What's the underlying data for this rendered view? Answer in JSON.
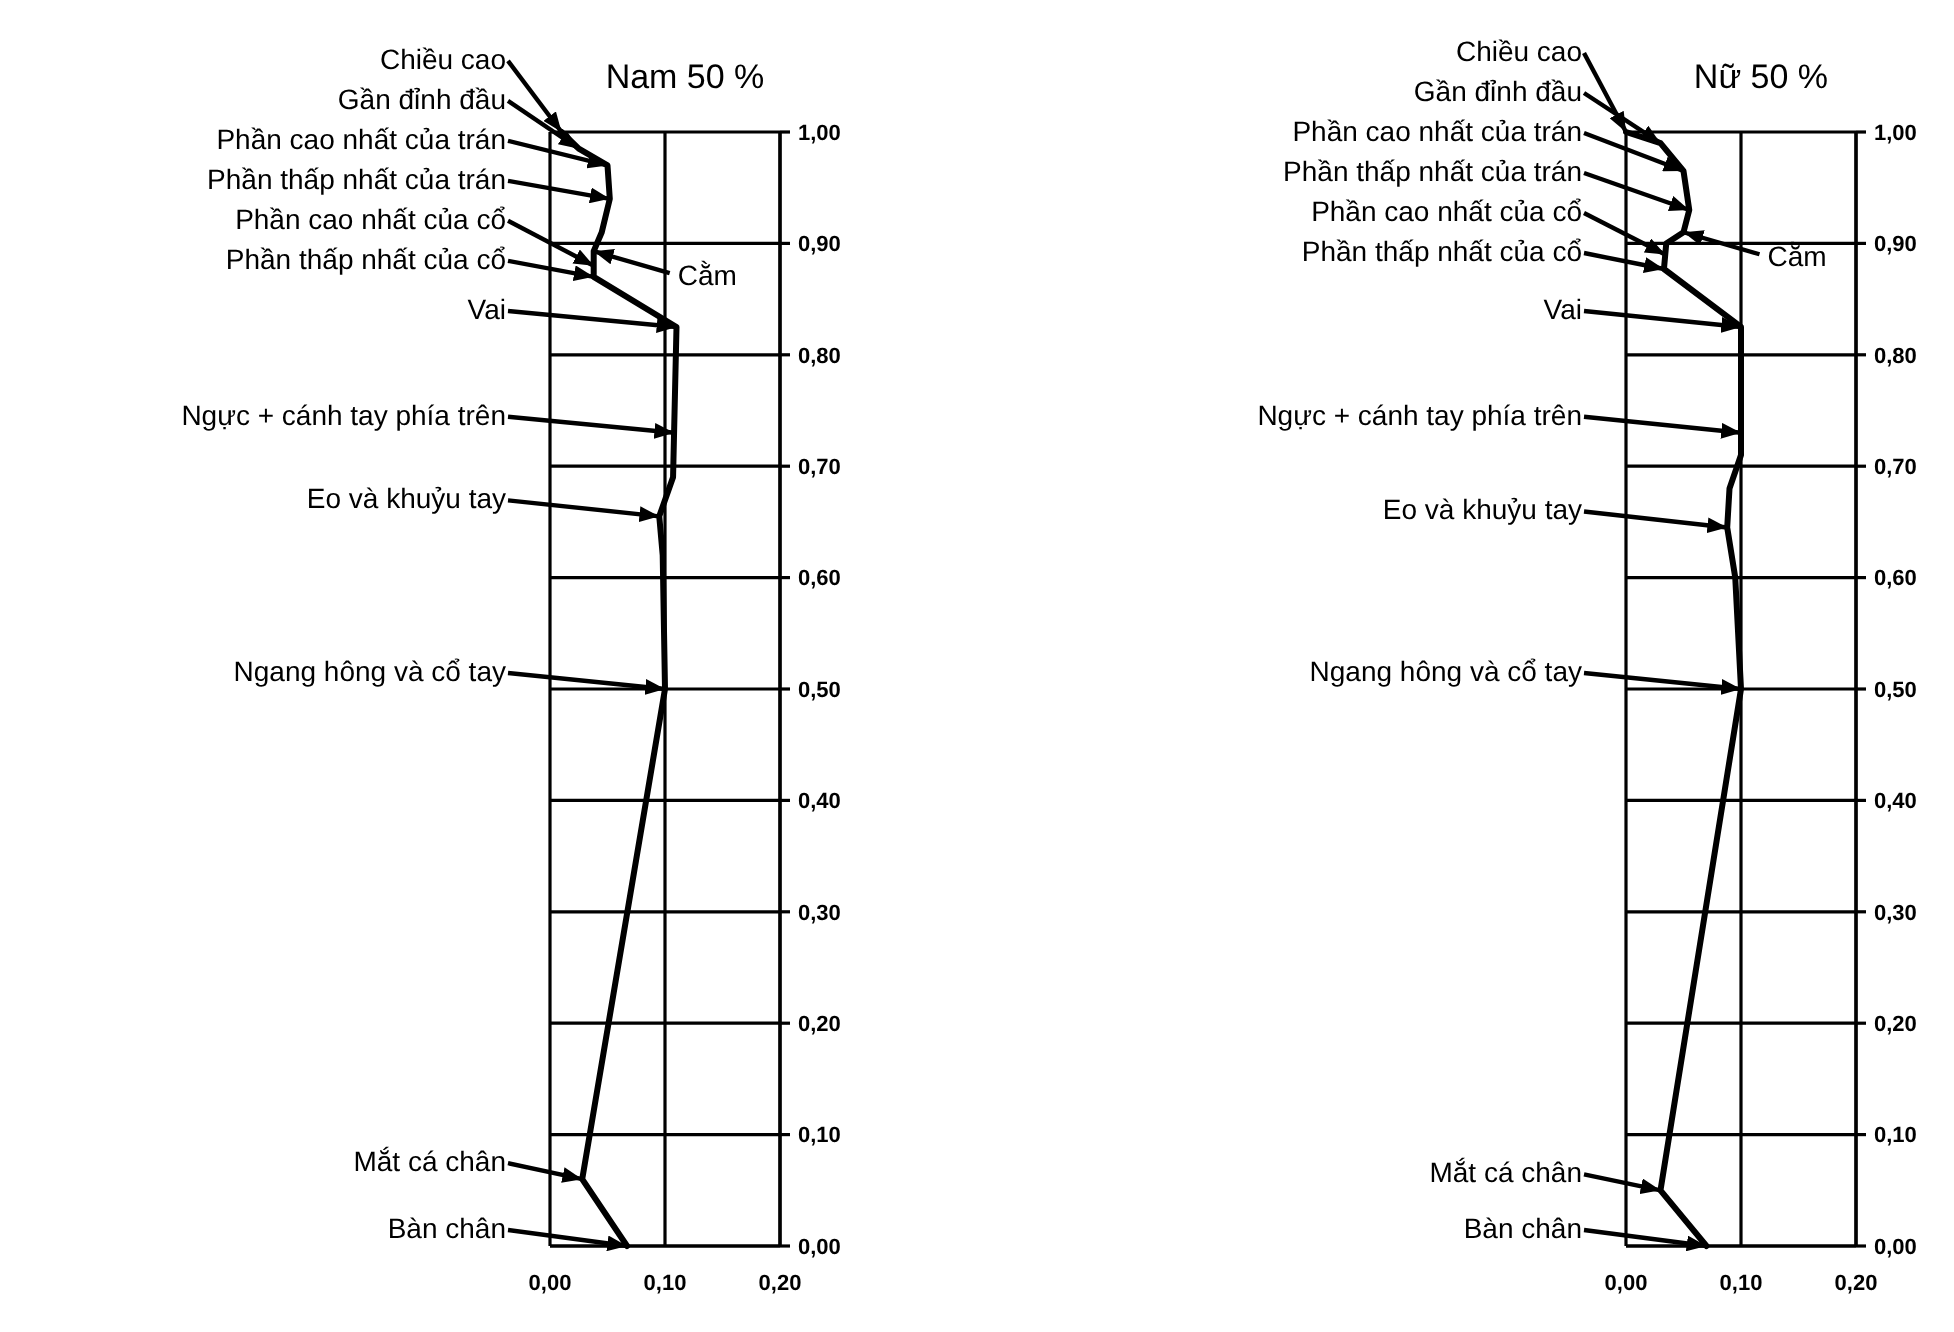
{
  "chart_data": [
    {
      "type": "line",
      "title": "Nam 50 %",
      "line_style": "solid",
      "grid": true,
      "xlim": [
        0,
        0.2
      ],
      "ylim": [
        0,
        1
      ],
      "xticks": [
        {
          "value": 0,
          "label": "0,00"
        },
        {
          "value": 0.1,
          "label": "0,10"
        },
        {
          "value": 0.2,
          "label": "0,20"
        }
      ],
      "yticks": [
        {
          "value": 0,
          "label": "0,00"
        },
        {
          "value": 0.1,
          "label": "0,10"
        },
        {
          "value": 0.2,
          "label": "0,20"
        },
        {
          "value": 0.3,
          "label": "0,30"
        },
        {
          "value": 0.4,
          "label": "0,40"
        },
        {
          "value": 0.5,
          "label": "0,50"
        },
        {
          "value": 0.6,
          "label": "0,60"
        },
        {
          "value": 0.7,
          "label": "0,70"
        },
        {
          "value": 0.8,
          "label": "0,80"
        },
        {
          "value": 0.9,
          "label": "0,90"
        },
        {
          "value": 1,
          "label": "1,00"
        }
      ],
      "series": [
        {
          "color": "#000000",
          "x": [
            0.01,
            0.025,
            0.05,
            0.052,
            0.045,
            0.038,
            0.038,
            0.11,
            0.107,
            0.095,
            0.098,
            0.1,
            0.028,
            0.067
          ],
          "values": [
            1.0,
            0.985,
            0.97,
            0.94,
            0.91,
            0.893,
            0.87,
            0.825,
            0.69,
            0.655,
            0.62,
            0.5,
            0.06,
            0.0
          ]
        }
      ],
      "annotations": [
        {
          "text": "Chiều cao",
          "x": 0.01,
          "y": 1.0
        },
        {
          "text": "Gần đỉnh đầu",
          "x": 0.025,
          "y": 0.985
        },
        {
          "text": "Phần cao nhất của trán",
          "x": 0.05,
          "y": 0.97
        },
        {
          "text": "Phần thấp nhất của trán",
          "x": 0.052,
          "y": 0.94
        },
        {
          "text": "Phần cao nhất của cổ",
          "x": 0.038,
          "y": 0.88
        },
        {
          "text": "Cằm",
          "x": 0.038,
          "y": 0.893
        },
        {
          "text": "Phần thấp nhất của cổ",
          "x": 0.038,
          "y": 0.87
        },
        {
          "text": "Vai",
          "x": 0.11,
          "y": 0.825
        },
        {
          "text": "Ngực + cánh tay phía trên",
          "x": 0.108,
          "y": 0.73
        },
        {
          "text": "Eo và khuỷu tay",
          "x": 0.095,
          "y": 0.655
        },
        {
          "text": "Ngang hông và cổ tay",
          "x": 0.1,
          "y": 0.5
        },
        {
          "text": "Mắt cá chân",
          "x": 0.028,
          "y": 0.06
        },
        {
          "text": "Bàn chân",
          "x": 0.067,
          "y": 0.0
        }
      ]
    },
    {
      "type": "line",
      "title": "Nữ 50 %",
      "line_style": "solid",
      "grid": true,
      "xlim": [
        0,
        0.2
      ],
      "ylim": [
        0,
        1
      ],
      "xticks": [
        {
          "value": 0,
          "label": "0,00"
        },
        {
          "value": 0.1,
          "label": "0,10"
        },
        {
          "value": 0.2,
          "label": "0,20"
        }
      ],
      "yticks": [
        {
          "value": 0,
          "label": "0,00"
        },
        {
          "value": 0.1,
          "label": "0,10"
        },
        {
          "value": 0.2,
          "label": "0,20"
        },
        {
          "value": 0.3,
          "label": "0,30"
        },
        {
          "value": 0.4,
          "label": "0,40"
        },
        {
          "value": 0.5,
          "label": "0,50"
        },
        {
          "value": 0.6,
          "label": "0,60"
        },
        {
          "value": 0.7,
          "label": "0,70"
        },
        {
          "value": 0.8,
          "label": "0,80"
        },
        {
          "value": 0.9,
          "label": "0,90"
        },
        {
          "value": 1,
          "label": "1,00"
        }
      ],
      "series": [
        {
          "color": "#000000",
          "x": [
            0.0,
            0.03,
            0.05,
            0.055,
            0.05,
            0.035,
            0.033,
            0.1,
            0.1,
            0.09,
            0.088,
            0.095,
            0.1,
            0.03,
            0.07
          ],
          "values": [
            1.0,
            0.99,
            0.965,
            0.93,
            0.91,
            0.9,
            0.877,
            0.825,
            0.71,
            0.68,
            0.645,
            0.6,
            0.5,
            0.05,
            0.0
          ]
        }
      ],
      "annotations": [
        {
          "text": "Chiều cao",
          "x": 0,
          "y": 1.0
        },
        {
          "text": "Gần đỉnh đầu",
          "x": 0.03,
          "y": 0.99
        },
        {
          "text": "Phần cao nhất của trán",
          "x": 0.05,
          "y": 0.965
        },
        {
          "text": "Phần thấp nhất của trán",
          "x": 0.055,
          "y": 0.93
        },
        {
          "text": "Phần cao nhất của cổ",
          "x": 0.034,
          "y": 0.89
        },
        {
          "text": "Cằm",
          "x": 0.05,
          "y": 0.91
        },
        {
          "text": "Phần thấp nhất của cổ",
          "x": 0.033,
          "y": 0.877
        },
        {
          "text": "Vai",
          "x": 0.1,
          "y": 0.825
        },
        {
          "text": "Ngực + cánh tay phía trên",
          "x": 0.1,
          "y": 0.73
        },
        {
          "text": "Eo và khuỷu tay",
          "x": 0.088,
          "y": 0.645
        },
        {
          "text": "Ngang hông và cổ tay",
          "x": 0.1,
          "y": 0.5
        },
        {
          "text": "Mắt cá chân",
          "x": 0.03,
          "y": 0.05
        },
        {
          "text": "Bàn chân",
          "x": 0.07,
          "y": 0.0
        }
      ]
    }
  ]
}
